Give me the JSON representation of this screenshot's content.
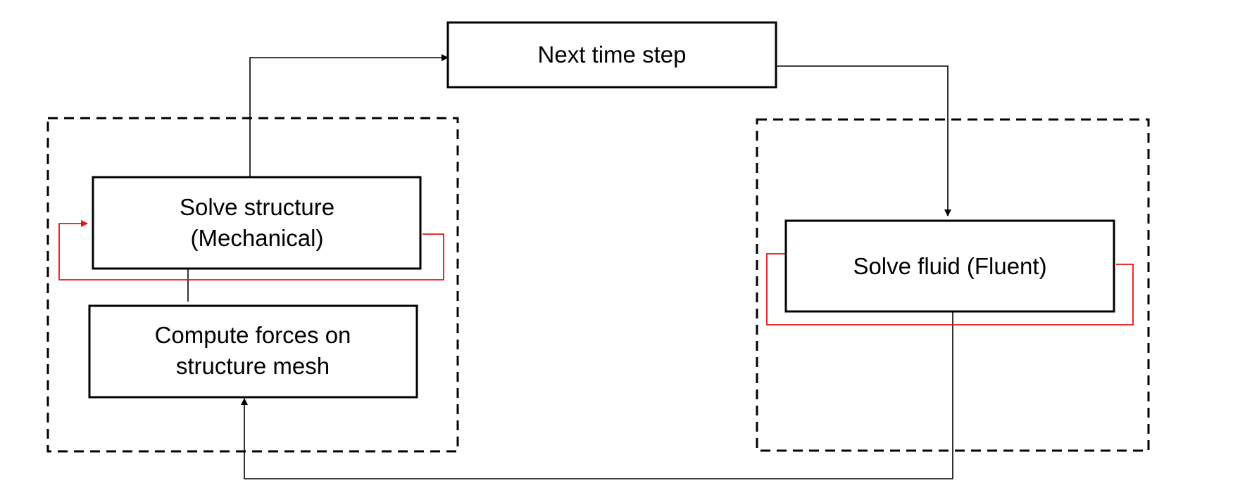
{
  "nodes": {
    "next_time_step": {
      "label": "Next time step"
    },
    "solve_structure": {
      "line1": "Solve structure",
      "line2": "(Mechanical)"
    },
    "compute_forces": {
      "line1": "Compute forces on",
      "line2": "structure mesh"
    },
    "solve_fluid": {
      "label": "Solve fluid (Fluent)"
    }
  },
  "colors": {
    "line": "#000000",
    "loop_arrow": "#ee1111",
    "background": "#ffffff"
  }
}
